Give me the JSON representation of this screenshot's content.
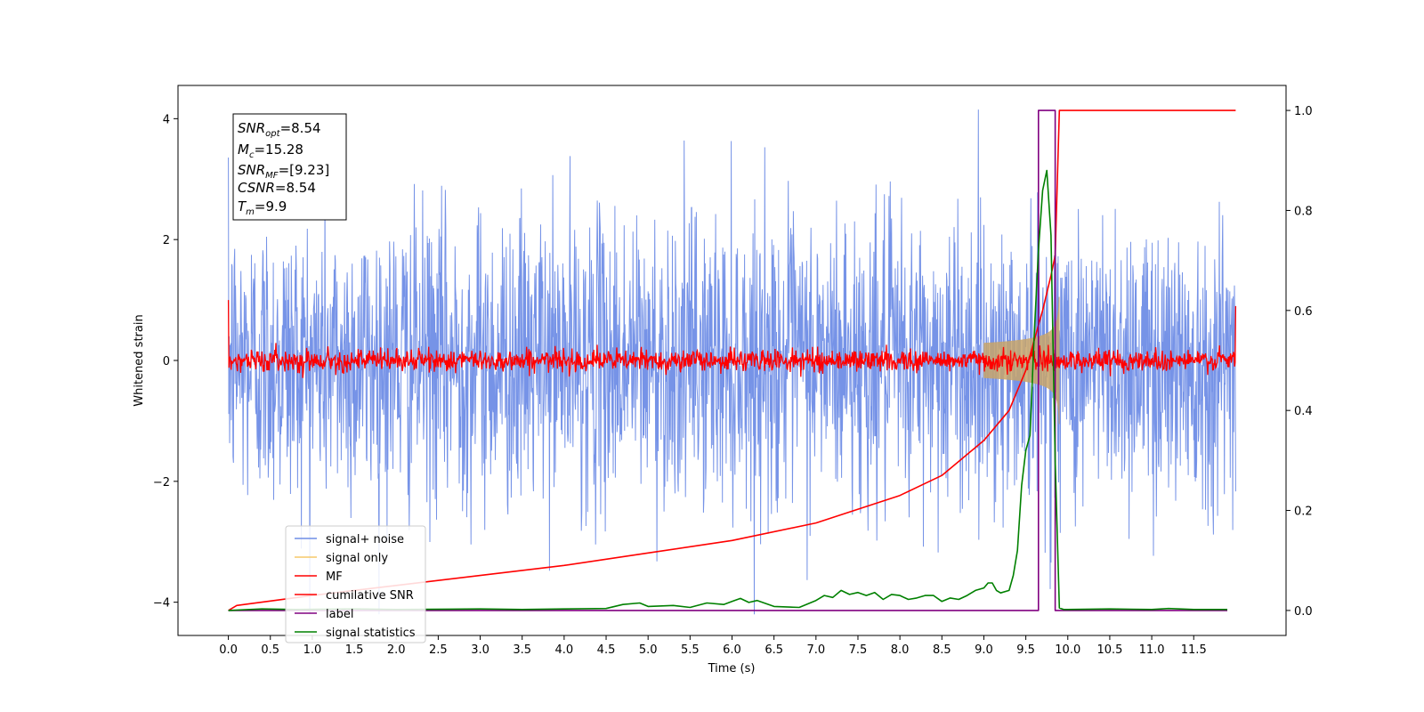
{
  "chart_data": {
    "type": "line",
    "xlabel": "Time (s)",
    "ylabel": "Whitened strain",
    "xlim": [
      -0.6,
      12.6
    ],
    "ylim": [
      -4.55,
      4.55
    ],
    "y2lim": [
      -0.05,
      1.05
    ],
    "x_ticks": [
      0.0,
      0.5,
      1.0,
      1.5,
      2.0,
      2.5,
      3.0,
      3.5,
      4.0,
      4.5,
      5.0,
      5.5,
      6.0,
      6.5,
      7.0,
      7.5,
      8.0,
      8.5,
      9.0,
      9.5,
      10.0,
      10.5,
      11.0,
      11.5
    ],
    "x_tick_labels": [
      "0.0",
      "0.5",
      "1.0",
      "1.5",
      "2.0",
      "2.5",
      "3.0",
      "3.5",
      "4.0",
      "4.5",
      "5.0",
      "5.5",
      "6.0",
      "6.5",
      "7.0",
      "7.5",
      "8.0",
      "8.5",
      "9.0",
      "9.5",
      "10.0",
      "10.5",
      "11.0",
      "11.5"
    ],
    "y_ticks": [
      -4,
      -2,
      0,
      2,
      4
    ],
    "y_tick_labels": [
      "−4",
      "−2",
      "0",
      "2",
      "4"
    ],
    "y2_ticks": [
      0.0,
      0.2,
      0.4,
      0.6,
      0.8,
      1.0
    ],
    "y2_tick_labels": [
      "0.0",
      "0.2",
      "0.4",
      "0.6",
      "0.8",
      "1.0"
    ],
    "grid": false,
    "legend_position": "lower-left",
    "legend": [
      {
        "label": "signal+ noise",
        "color": "#6f8de6"
      },
      {
        "label": "signal only",
        "color": "#f5c96a"
      },
      {
        "label": "MF",
        "color": "#ff0000"
      },
      {
        "label": "cumilative SNR",
        "color": "#ff0000"
      },
      {
        "label": "label",
        "color": "#800080"
      },
      {
        "label": "signal statistics",
        "color": "#008000"
      }
    ],
    "info_box": {
      "snr_opt": {
        "main": "SNR",
        "sub": "opt",
        "value": "=8.54"
      },
      "mc": {
        "main": "M",
        "sub": "c",
        "value": "=15.28"
      },
      "snr_mf": {
        "main": "SNR",
        "sub": "MF",
        "value": "=[9.23]"
      },
      "csnr": {
        "main": "CSNR",
        "value": "=8.54"
      },
      "tm": {
        "main": "T",
        "sub": "m",
        "value": "=9.9"
      }
    },
    "series": [
      {
        "name": "signal+ noise",
        "axis": "left",
        "color": "#6f8de6",
        "x_range": [
          0.0,
          12.0
        ],
        "noise_amplitude": 2.2,
        "upper_envelope_max": 4.2,
        "lower_envelope_min": -4.2
      },
      {
        "name": "signal only",
        "axis": "left",
        "color": "#c8a56a",
        "x_range": [
          9.0,
          9.9
        ],
        "peak_amplitude": 1.0,
        "merger_time": 9.9
      },
      {
        "name": "MF",
        "axis": "left",
        "color": "#ff0000",
        "x_range": [
          0.0,
          12.0
        ],
        "noise_amplitude": 0.18,
        "edge_values": [
          1.0,
          0.9
        ]
      },
      {
        "name": "cumilative SNR",
        "axis": "right",
        "color": "#ff0000",
        "x": [
          0.0,
          0.1,
          1.0,
          2.0,
          3.0,
          4.0,
          5.0,
          6.0,
          7.0,
          8.0,
          8.5,
          9.0,
          9.3,
          9.5,
          9.6,
          9.7,
          9.8,
          9.85,
          9.9,
          10.0,
          12.0
        ],
        "values": [
          0.0,
          0.01,
          0.03,
          0.05,
          0.07,
          0.09,
          0.115,
          0.14,
          0.175,
          0.23,
          0.27,
          0.34,
          0.4,
          0.48,
          0.54,
          0.6,
          0.67,
          0.71,
          1.0,
          1.0,
          1.0
        ]
      },
      {
        "name": "label",
        "axis": "right",
        "color": "#800080",
        "x": [
          0.0,
          9.65,
          9.65,
          9.85,
          9.85,
          11.9
        ],
        "values": [
          0.0,
          0.0,
          1.0,
          1.0,
          0.0,
          0.0
        ]
      },
      {
        "name": "signal statistics",
        "axis": "right",
        "color": "#008000",
        "x": [
          0.0,
          0.4,
          0.8,
          1.5,
          2.0,
          3.0,
          3.5,
          4.0,
          4.5,
          4.7,
          4.9,
          5.0,
          5.3,
          5.5,
          5.7,
          5.9,
          6.0,
          6.1,
          6.2,
          6.3,
          6.5,
          6.8,
          7.0,
          7.1,
          7.2,
          7.3,
          7.4,
          7.5,
          7.6,
          7.7,
          7.8,
          7.9,
          8.0,
          8.1,
          8.2,
          8.3,
          8.4,
          8.5,
          8.6,
          8.7,
          8.8,
          8.9,
          9.0,
          9.05,
          9.1,
          9.15,
          9.2,
          9.3,
          9.35,
          9.4,
          9.45,
          9.5,
          9.55,
          9.6,
          9.65,
          9.7,
          9.75,
          9.8,
          9.85,
          9.9,
          9.95,
          10.0,
          10.5,
          11.0,
          11.2,
          11.5,
          11.9
        ],
        "values": [
          0.0,
          0.003,
          0.002,
          0.003,
          0.002,
          0.003,
          0.002,
          0.003,
          0.004,
          0.012,
          0.015,
          0.008,
          0.01,
          0.006,
          0.015,
          0.012,
          0.018,
          0.024,
          0.016,
          0.02,
          0.008,
          0.006,
          0.02,
          0.03,
          0.026,
          0.04,
          0.032,
          0.036,
          0.03,
          0.036,
          0.022,
          0.032,
          0.03,
          0.022,
          0.025,
          0.03,
          0.03,
          0.018,
          0.025,
          0.022,
          0.03,
          0.04,
          0.045,
          0.055,
          0.055,
          0.04,
          0.035,
          0.04,
          0.07,
          0.12,
          0.25,
          0.32,
          0.35,
          0.55,
          0.72,
          0.84,
          0.88,
          0.75,
          0.3,
          0.005,
          0.002,
          0.002,
          0.003,
          0.002,
          0.004,
          0.002,
          0.002
        ]
      }
    ]
  }
}
